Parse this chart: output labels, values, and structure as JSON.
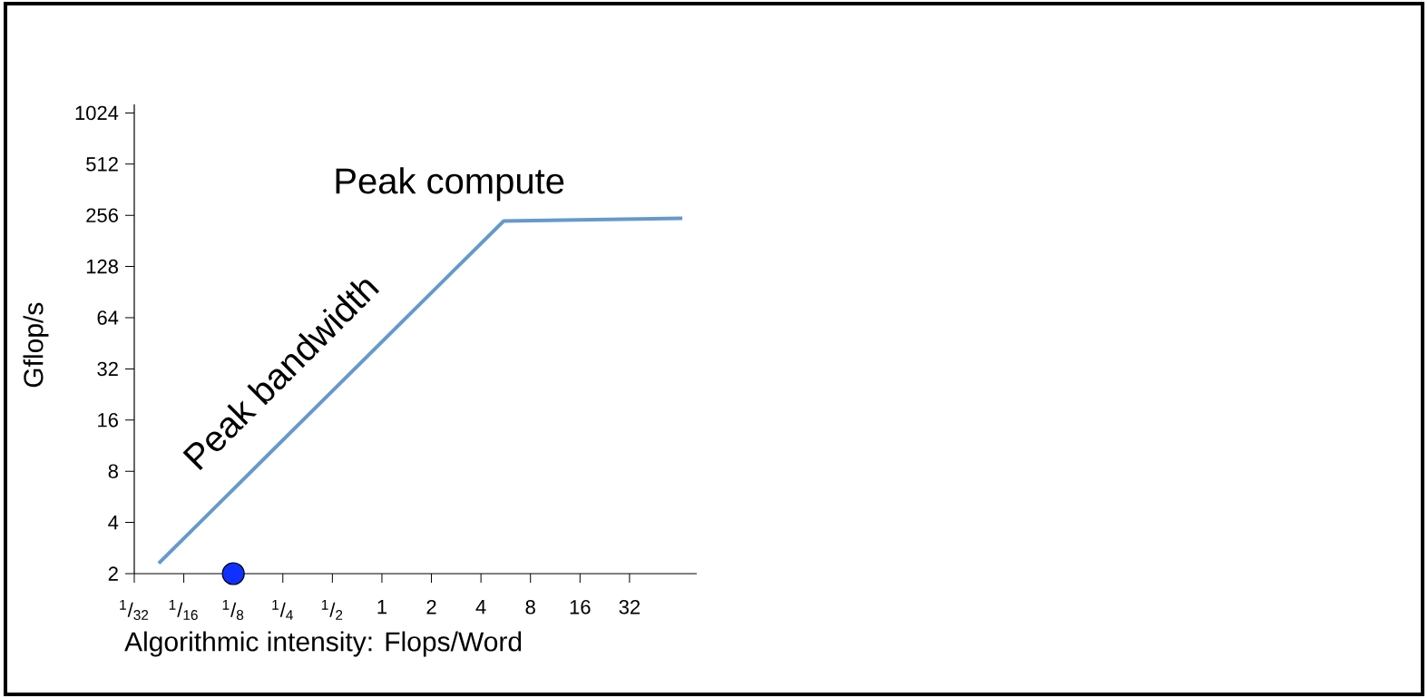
{
  "chart_data": {
    "type": "line",
    "xlabel": "Algorithmic intensity: Flops/Word",
    "ylabel": "Gflop/s",
    "log": "xy",
    "xlim": [
      0.03125,
      82
    ],
    "ylim": [
      2,
      1150
    ],
    "xticks": [
      {
        "value": 0.03125,
        "label": "$^{1}$/$_{32}$"
      },
      {
        "value": 0.0625,
        "label": "$^{1}$/$_{16}$"
      },
      {
        "value": 0.125,
        "label": "$^{1}$/$_{8}$"
      },
      {
        "value": 0.25,
        "label": "$^{1}$/$_{4}$"
      },
      {
        "value": 0.5,
        "label": "$^{1}$/$_{2}$"
      },
      1,
      2,
      4,
      8,
      16,
      32
    ],
    "yticks": [
      2,
      4,
      8,
      16,
      32,
      64,
      128,
      256,
      512,
      1024
    ],
    "series": [
      {
        "color": "#6699cc",
        "x": [
          0.044,
          5.5,
          67
        ],
        "values": [
          2.3,
          237,
          246
        ]
      },
      {
        "type": "scatter",
        "color": "#1030ff",
        "marker": "circle",
        "x": [
          0.125
        ],
        "values": [
          2
        ]
      }
    ],
    "annotations": [
      "Peak compute",
      "Peak bandwidth"
    ]
  }
}
